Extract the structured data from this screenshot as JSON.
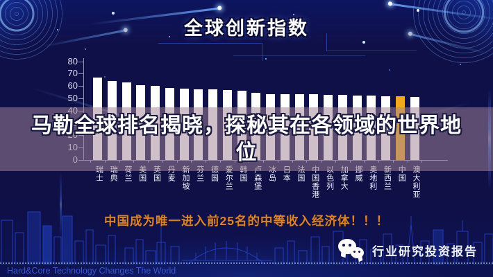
{
  "header": {
    "title": "全球创新指数"
  },
  "overlay_title": {
    "line1": "马勒全球排名揭晓，探秘其在各领域的世界地",
    "line2": "位"
  },
  "chart_data": {
    "type": "bar",
    "title": "全球创新指数",
    "categories": [
      "瑞士",
      "瑞典",
      "荷兰",
      "美国",
      "英国",
      "丹麦",
      "新加坡",
      "芬兰",
      "德国",
      "爱尔兰",
      "韩国",
      "卢森堡",
      "冰岛",
      "日本",
      "法国",
      "中国香港",
      "以色列",
      "加拿大",
      "挪威",
      "奥地利",
      "新西兰",
      "中国",
      "澳大利亚"
    ],
    "values": [
      66.8,
      63.8,
      63.2,
      60.8,
      60.2,
      58.2,
      58.0,
      57.4,
      57.3,
      56.8,
      56.2,
      54.6,
      53.2,
      53.6,
      53.3,
      53.2,
      53.1,
      52.8,
      52.5,
      52.2,
      51.9,
      51.5,
      50.9
    ],
    "bar_color": "#ffffff",
    "highlight_index": 21,
    "highlight_category": "中国",
    "highlight_color": "#f1a81c",
    "yticks": [
      0,
      10,
      20,
      30,
      40,
      50,
      60,
      70,
      80
    ],
    "ylim": [
      0,
      85
    ],
    "xlabel": "",
    "ylabel": "",
    "grid": false,
    "legend_position": "none"
  },
  "banner": {
    "text": "中国成为唯一进入前25名的中等收入经济体！！！"
  },
  "footer": {
    "slogan": "Hard&Core Technology Changes The World",
    "wechat_label": "行业研究投资报告"
  },
  "icons": [
    "wechat-icon",
    "tech-disc-left-icon",
    "tech-disc-right-icon",
    "city-skyline"
  ],
  "colors": {
    "background": "#101047",
    "bar": "#ffffff",
    "highlight_bar": "#f1a81c",
    "overlay_band": "rgba(163,132,151,0.52)",
    "banner_text": "#d9832f",
    "axis_text": "#dcdcec",
    "slogan_text": "#3a58d4"
  }
}
